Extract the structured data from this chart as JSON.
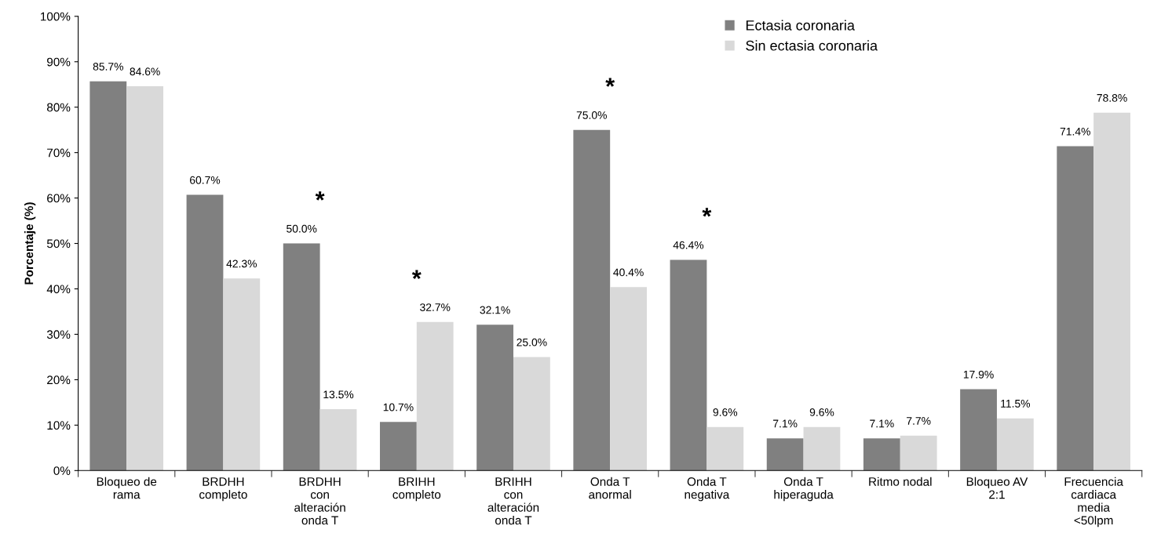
{
  "chart_data": {
    "type": "bar",
    "ylabel": "Porcentaje (%)",
    "categories": [
      "Bloqueo de\nrama",
      "BRDHH\ncompleto",
      "BRDHH\ncon\nalteración\nonda T",
      "BRIHH\ncompleto",
      "BRIHH\ncon\nalteración\nonda T",
      "Onda T\nanormal",
      "Onda T\nnegativa",
      "Onda T\nhiperaguda",
      "Ritmo nodal",
      "Bloqueo AV\n2:1",
      "Frecuencia\ncardiaca\nmedia\n<50lpm"
    ],
    "series": [
      {
        "name": "Ectasia coronaria",
        "color": "#808080",
        "values": [
          85.7,
          60.7,
          50.0,
          10.7,
          32.1,
          75.0,
          46.4,
          7.1,
          7.1,
          17.9,
          71.4
        ],
        "value_labels": [
          "85.7%",
          "60.7%",
          "50.0%",
          "10.7%",
          "32.1%",
          "75.0%",
          "46.4%",
          "7.1%",
          "7.1%",
          "17.9%",
          "71.4%"
        ]
      },
      {
        "name": "Sin ectasia coronaria",
        "color": "#d9d9d9",
        "values": [
          84.6,
          42.3,
          13.5,
          32.7,
          25.0,
          40.4,
          9.6,
          9.6,
          7.7,
          11.5,
          78.8
        ],
        "value_labels": [
          "84.6%",
          "42.3%",
          "13.5%",
          "32.7%",
          "25.0%",
          "40.4%",
          "9.6%",
          "9.6%",
          "7.7%",
          "11.5%",
          "78.8%"
        ]
      }
    ],
    "ylim": [
      0,
      100
    ],
    "yticks": [
      {
        "value": 0,
        "label": "0%"
      },
      {
        "value": 10,
        "label": "10%"
      },
      {
        "value": 20,
        "label": "20%"
      },
      {
        "value": 30,
        "label": "30%"
      },
      {
        "value": 40,
        "label": "40%"
      },
      {
        "value": 50,
        "label": "50%"
      },
      {
        "value": 60,
        "label": "60%"
      },
      {
        "value": 70,
        "label": "70%"
      },
      {
        "value": 80,
        "label": "80%"
      },
      {
        "value": 90,
        "label": "90%"
      },
      {
        "value": 100,
        "label": "100%"
      }
    ],
    "annotations": [
      "*",
      "*",
      "*",
      "*"
    ],
    "legend": "top",
    "grid": false
  }
}
